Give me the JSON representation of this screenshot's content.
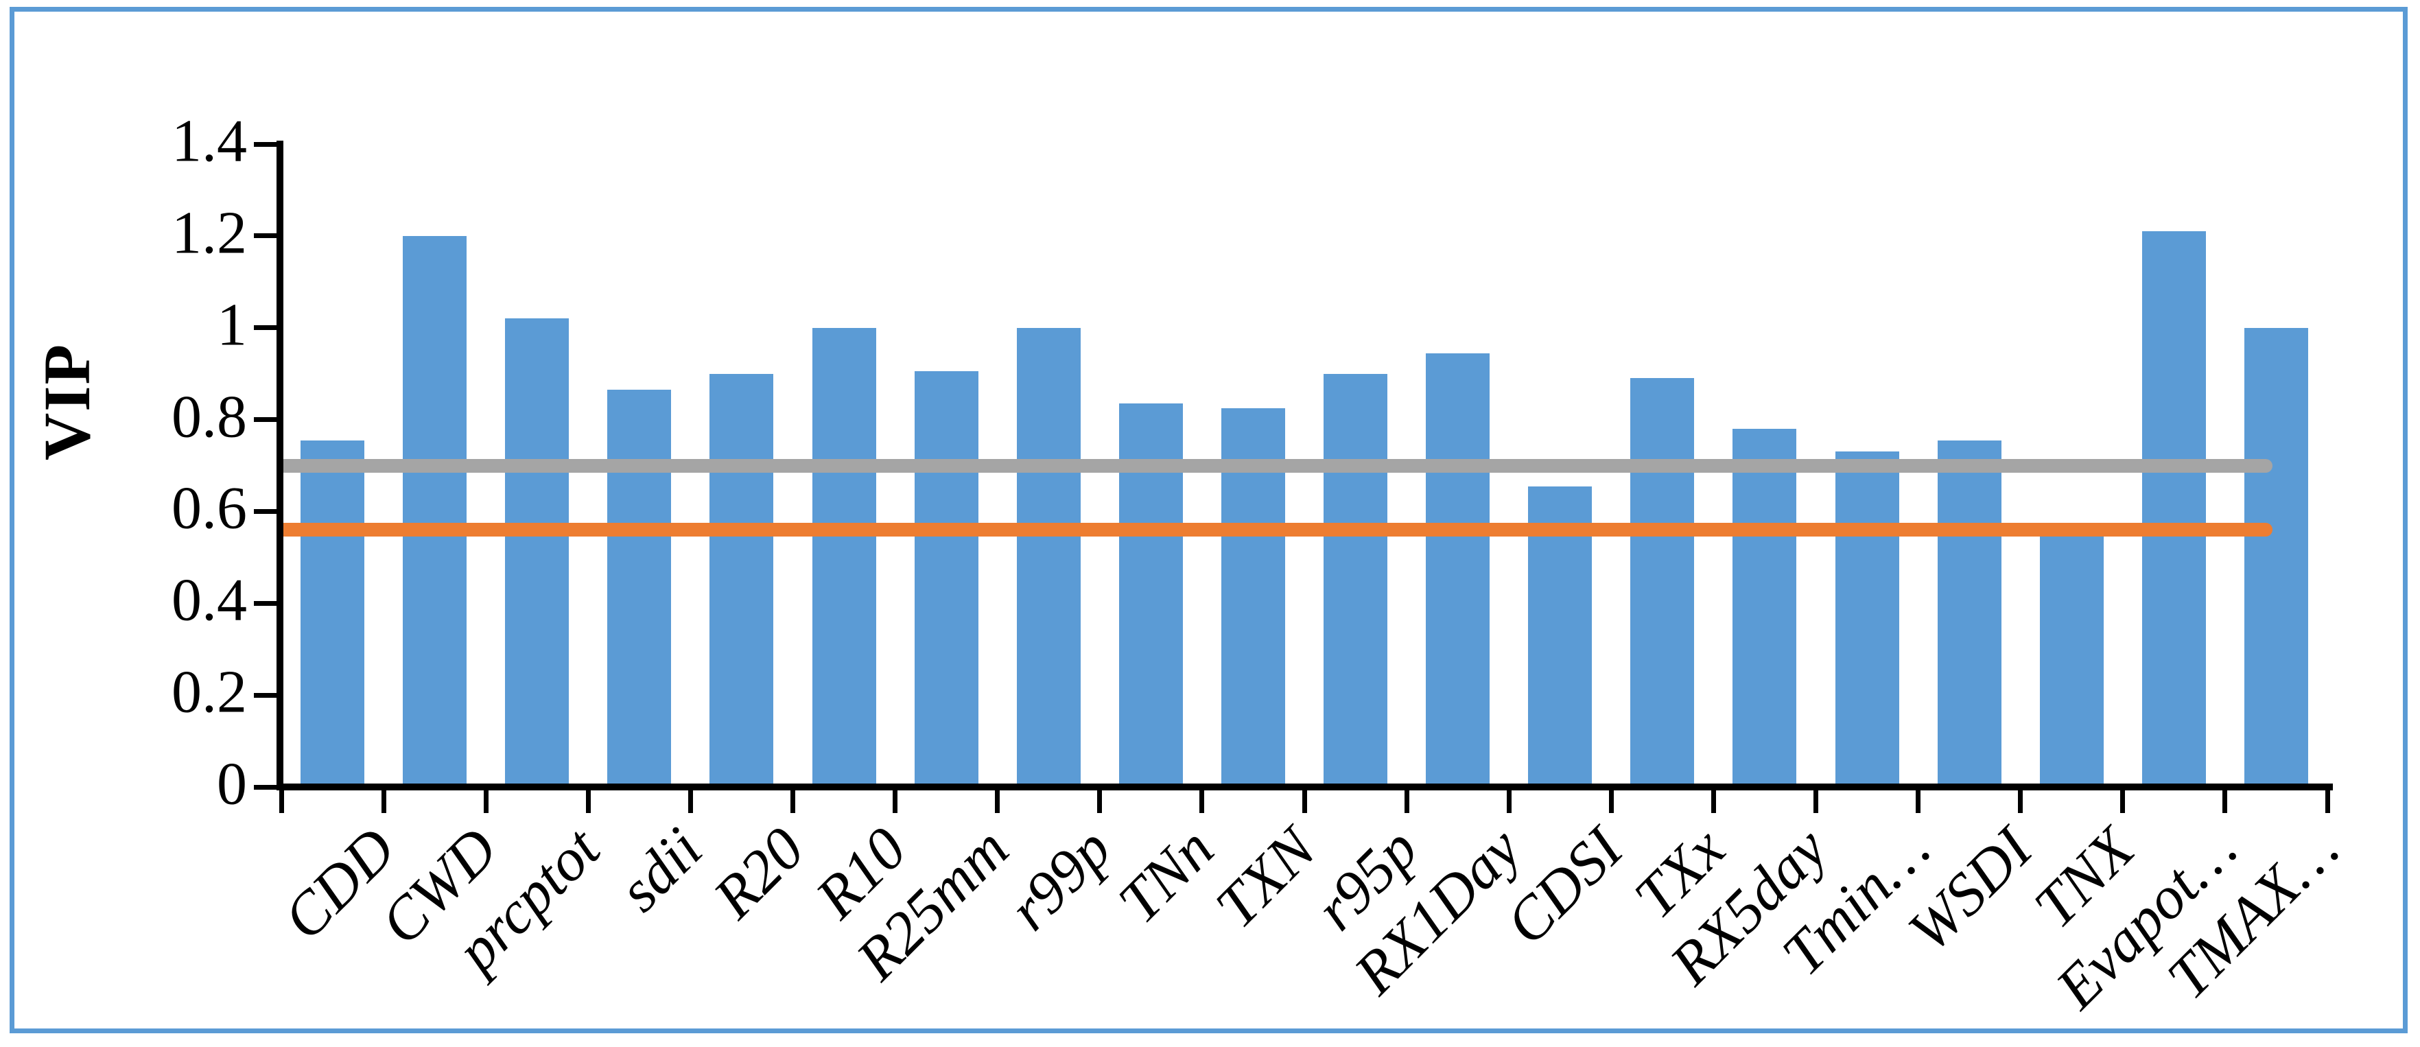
{
  "figure": {
    "frame_color": "#5B9BD5",
    "background_color": "#FFFFFF",
    "axis_color": "#000000"
  },
  "chart_data": {
    "type": "bar",
    "title": "",
    "xlabel": "",
    "ylabel": "VIP",
    "ylim": [
      0,
      1.4
    ],
    "yticks": [
      1.4,
      1.2,
      1,
      0.8,
      0.6,
      0.4,
      0.2,
      0
    ],
    "ytick_labels": [
      "1.4",
      "1.2",
      "1",
      "0.8",
      "0.6",
      "0.4",
      "0.2",
      "0"
    ],
    "grid": false,
    "legend": "none",
    "bar_color": "#5B9BD5",
    "categories": [
      "CDD",
      "CWD",
      "prcptot",
      "sdii",
      "R20",
      "R10",
      "R25mm",
      "r99p",
      "TNn",
      "TXN",
      "r95p",
      "RX1Day",
      "CDSI",
      "TXx",
      "RX5day",
      "Tmin…",
      "WSDI",
      "TNX",
      "Evapot…",
      "TMAX…"
    ],
    "values": [
      0.755,
      1.2,
      1.02,
      0.865,
      0.9,
      1.0,
      0.905,
      1.0,
      0.835,
      0.825,
      0.9,
      0.945,
      0.655,
      0.89,
      0.78,
      0.73,
      0.755,
      0.55,
      1.21,
      1.0
    ],
    "reference_lines": [
      {
        "name": "gray-threshold-line",
        "value": 0.7,
        "color": "#A5A5A5"
      },
      {
        "name": "orange-threshold-line",
        "value": 0.56,
        "color": "#ED7D31"
      }
    ]
  }
}
